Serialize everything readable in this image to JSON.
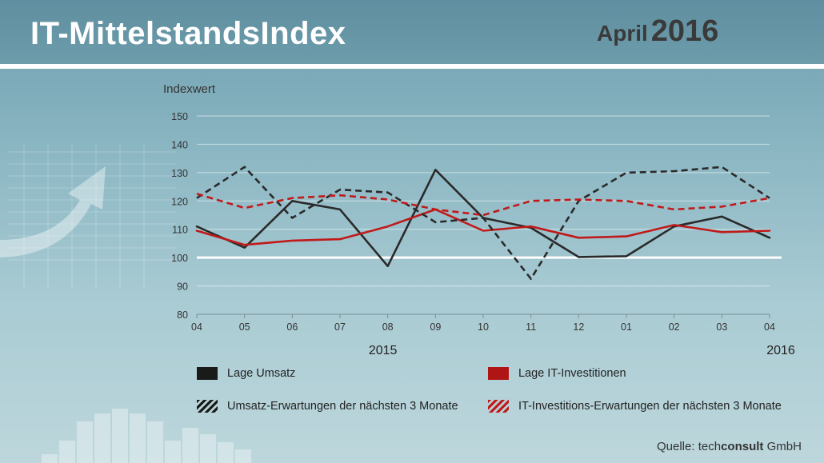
{
  "header": {
    "title": "IT-MittelstandsIndex",
    "month": "April",
    "year": "2016"
  },
  "source": {
    "label": "Quelle:",
    "brand_prefix": "tech",
    "brand_bold": "consult",
    "brand_suffix": "GmbH"
  },
  "colors": {
    "header_bg": "#6d9cab",
    "lage_umsatz": "#2a2a2a",
    "lage_it_investitionen": "#c01a1a",
    "reference_line": "#ffffff"
  },
  "legend": [
    {
      "label": "Lage Umsatz",
      "swatch": "solid-black"
    },
    {
      "label": "Lage IT-Investitionen",
      "swatch": "solid-red"
    },
    {
      "label": "Umsatz-Erwartungen der nächsten 3 Monate",
      "swatch": "hatched-black"
    },
    {
      "label": "IT-Investitions-Erwartungen der nächsten 3 Monate",
      "swatch": "hatched-red"
    }
  ],
  "chart_data": {
    "type": "line",
    "ylabel": "Indexwert",
    "ylim": [
      80,
      150
    ],
    "yticks": [
      80,
      90,
      100,
      110,
      120,
      130,
      140,
      150
    ],
    "categories": [
      "04",
      "05",
      "06",
      "07",
      "08",
      "09",
      "10",
      "11",
      "12",
      "01",
      "02",
      "03",
      "04"
    ],
    "year_labels": [
      {
        "label": "2015",
        "at_index": 4
      },
      {
        "label": "2016",
        "at_index": 12
      }
    ],
    "reference_line": 100,
    "grid": true,
    "legend_position": "bottom",
    "series": [
      {
        "name": "Lage Umsatz",
        "style": "solid",
        "color": "#2a2a2a",
        "values": [
          111,
          103.5,
          120,
          117,
          97,
          131,
          114,
          110.5,
          100.2,
          100.5,
          111,
          114.5,
          107
        ]
      },
      {
        "name": "Lage IT-Investitionen",
        "style": "solid",
        "color": "#c01a1a",
        "values": [
          109.5,
          104.5,
          106,
          106.5,
          111,
          117,
          109.5,
          111,
          107,
          107.5,
          111.5,
          109,
          109.5
        ]
      },
      {
        "name": "Umsatz-Erwartungen der nächsten 3 Monate",
        "style": "dashed",
        "color": "#2a2a2a",
        "values": [
          121,
          132,
          114,
          124,
          123,
          112.5,
          114,
          92.5,
          120,
          130,
          130.5,
          132,
          121
        ]
      },
      {
        "name": "IT-Investitions-Erwartungen der nächsten 3 Monate",
        "style": "dashed",
        "color": "#c01a1a",
        "values": [
          122.5,
          117.5,
          121,
          122,
          120.5,
          117,
          115,
          120,
          120.5,
          120,
          117,
          118,
          121
        ]
      }
    ]
  }
}
